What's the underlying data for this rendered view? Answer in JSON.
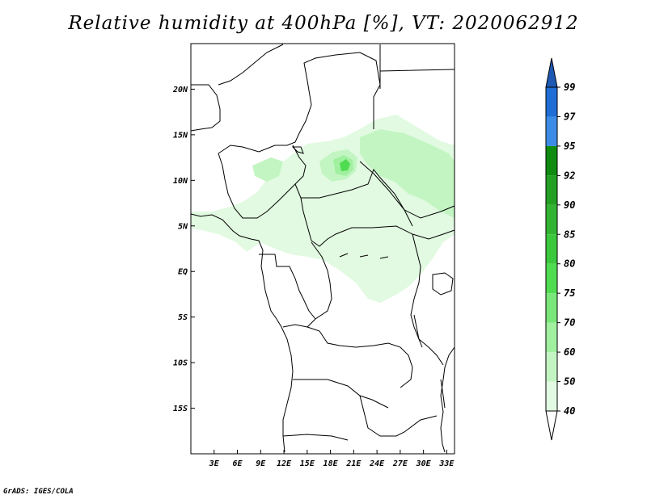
{
  "title": "Relative humidity at 400hPa [%], VT: 2020062912",
  "credit": "GrADS: IGES/COLA",
  "map": {
    "lon_range": [
      0,
      34
    ],
    "lat_range": [
      -20,
      25
    ],
    "lat_ticks": [
      {
        "value": 20,
        "label": "20N"
      },
      {
        "value": 15,
        "label": "15N"
      },
      {
        "value": 10,
        "label": "10N"
      },
      {
        "value": 5,
        "label": "5N"
      },
      {
        "value": 0,
        "label": "EQ"
      },
      {
        "value": -5,
        "label": "5S"
      },
      {
        "value": -10,
        "label": "10S"
      },
      {
        "value": -15,
        "label": "15S"
      }
    ],
    "lon_ticks": [
      {
        "value": 3,
        "label": "3E"
      },
      {
        "value": 6,
        "label": "6E"
      },
      {
        "value": 9,
        "label": "9E"
      },
      {
        "value": 12,
        "label": "12E"
      },
      {
        "value": 15,
        "label": "15E"
      },
      {
        "value": 18,
        "label": "18E"
      },
      {
        "value": 21,
        "label": "21E"
      },
      {
        "value": 24,
        "label": "24E"
      },
      {
        "value": 27,
        "label": "27E"
      },
      {
        "value": 30,
        "label": "30E"
      },
      {
        "value": 33,
        "label": "33E"
      }
    ]
  },
  "colorbar": {
    "levels": [
      "99",
      "97",
      "95",
      "92",
      "90",
      "85",
      "80",
      "75",
      "70",
      "60",
      "50",
      "40"
    ],
    "colors": [
      "#1e6ed6",
      "#3c8ce6",
      "#0f8c0f",
      "#23a023",
      "#32b432",
      "#3cc83c",
      "#50dc50",
      "#78e678",
      "#a0f0a0",
      "#c3f5c3",
      "#e1fae1"
    ],
    "top_arrow_color": "#1e5ab4",
    "bottom_arrow_color": "#ffffff"
  },
  "colors": {
    "coast": "#000000",
    "frame": "#000000"
  }
}
